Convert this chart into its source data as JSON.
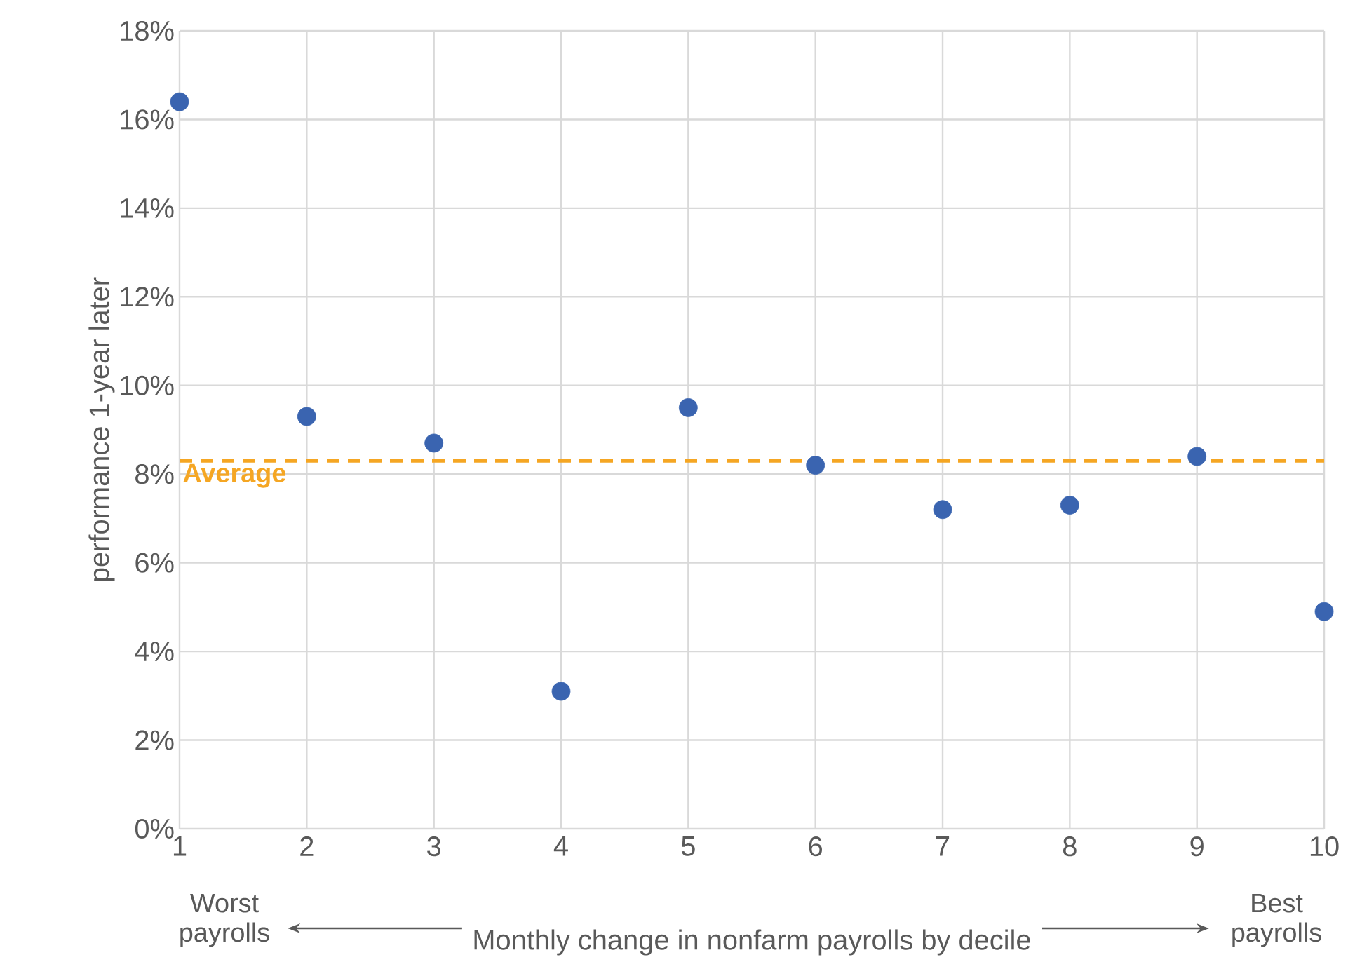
{
  "chart_data": {
    "type": "scatter",
    "ylabel": "performance 1-year later",
    "xlabel": "Monthly change in nonfarm payrolls by decile",
    "x": [
      1,
      2,
      3,
      4,
      5,
      6,
      7,
      8,
      9,
      10
    ],
    "series": [
      {
        "color": "#3a64b0",
        "values": [
          16.4,
          9.3,
          8.7,
          3.1,
          9.5,
          8.2,
          7.2,
          7.3,
          8.4,
          4.9
        ]
      }
    ],
    "xlim": [
      1,
      10
    ],
    "xticks": [
      1,
      2,
      3,
      4,
      5,
      6,
      7,
      8,
      9,
      10
    ],
    "ylim": [
      0,
      18
    ],
    "yticks": [
      {
        "value": 0,
        "label": "0%"
      },
      {
        "value": 2,
        "label": "2%"
      },
      {
        "value": 4,
        "label": "4%"
      },
      {
        "value": 6,
        "label": "6%"
      },
      {
        "value": 8,
        "label": "8%"
      },
      {
        "value": 10,
        "label": "10%"
      },
      {
        "value": 12,
        "label": "12%"
      },
      {
        "value": 14,
        "label": "14%"
      },
      {
        "value": 16,
        "label": "16%"
      },
      {
        "value": 18,
        "label": "18%"
      }
    ],
    "ref_lines": [
      {
        "axis": "y",
        "value": 8.3,
        "label": "Average",
        "color": "#f5a623",
        "line_style": "dashed"
      }
    ],
    "annotations": [
      "Worst payrolls",
      "Best payrolls"
    ],
    "grid": true,
    "marker": "circle"
  }
}
